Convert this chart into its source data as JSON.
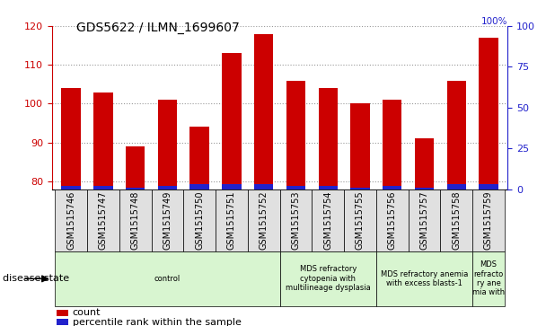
{
  "title": "GDS5622 / ILMN_1699607",
  "samples": [
    "GSM1515746",
    "GSM1515747",
    "GSM1515748",
    "GSM1515749",
    "GSM1515750",
    "GSM1515751",
    "GSM1515752",
    "GSM1515753",
    "GSM1515754",
    "GSM1515755",
    "GSM1515756",
    "GSM1515757",
    "GSM1515758",
    "GSM1515759"
  ],
  "count_values": [
    104,
    103,
    89,
    101,
    94,
    113,
    118,
    106,
    104,
    100,
    101,
    91,
    106,
    117
  ],
  "percentile_values": [
    2,
    2,
    1,
    2,
    3,
    3,
    3,
    2,
    2,
    1,
    2,
    1,
    3,
    3
  ],
  "ylim_left": [
    78,
    120
  ],
  "ylim_right": [
    0,
    100
  ],
  "yticks_left": [
    80,
    90,
    100,
    110,
    120
  ],
  "yticks_right": [
    0,
    25,
    50,
    75,
    100
  ],
  "bar_width": 0.6,
  "count_color": "#cc0000",
  "percentile_color": "#2222cc",
  "grid_color": "#999999",
  "disease_groups": [
    {
      "label": "control",
      "start": 0,
      "end": 7,
      "color": "#d8f5d0"
    },
    {
      "label": "MDS refractory\ncytopenia with\nmultilineage dysplasia",
      "start": 7,
      "end": 10,
      "color": "#d8f5d0"
    },
    {
      "label": "MDS refractory anemia\nwith excess blasts-1",
      "start": 10,
      "end": 13,
      "color": "#d8f5d0"
    },
    {
      "label": "MDS\nrefracto\nry ane\nmia with",
      "start": 13,
      "end": 14,
      "color": "#d8f5d0"
    }
  ],
  "disease_state_label": "disease state",
  "legend_count": "count",
  "legend_percentile": "percentile rank within the sample",
  "sample_box_color": "#e0e0e0",
  "tick_label_fontsize": 7,
  "axis_label_color_left": "#cc0000",
  "axis_label_color_right": "#2222cc",
  "background_color": "#ffffff",
  "plot_bg_color": "#ffffff"
}
